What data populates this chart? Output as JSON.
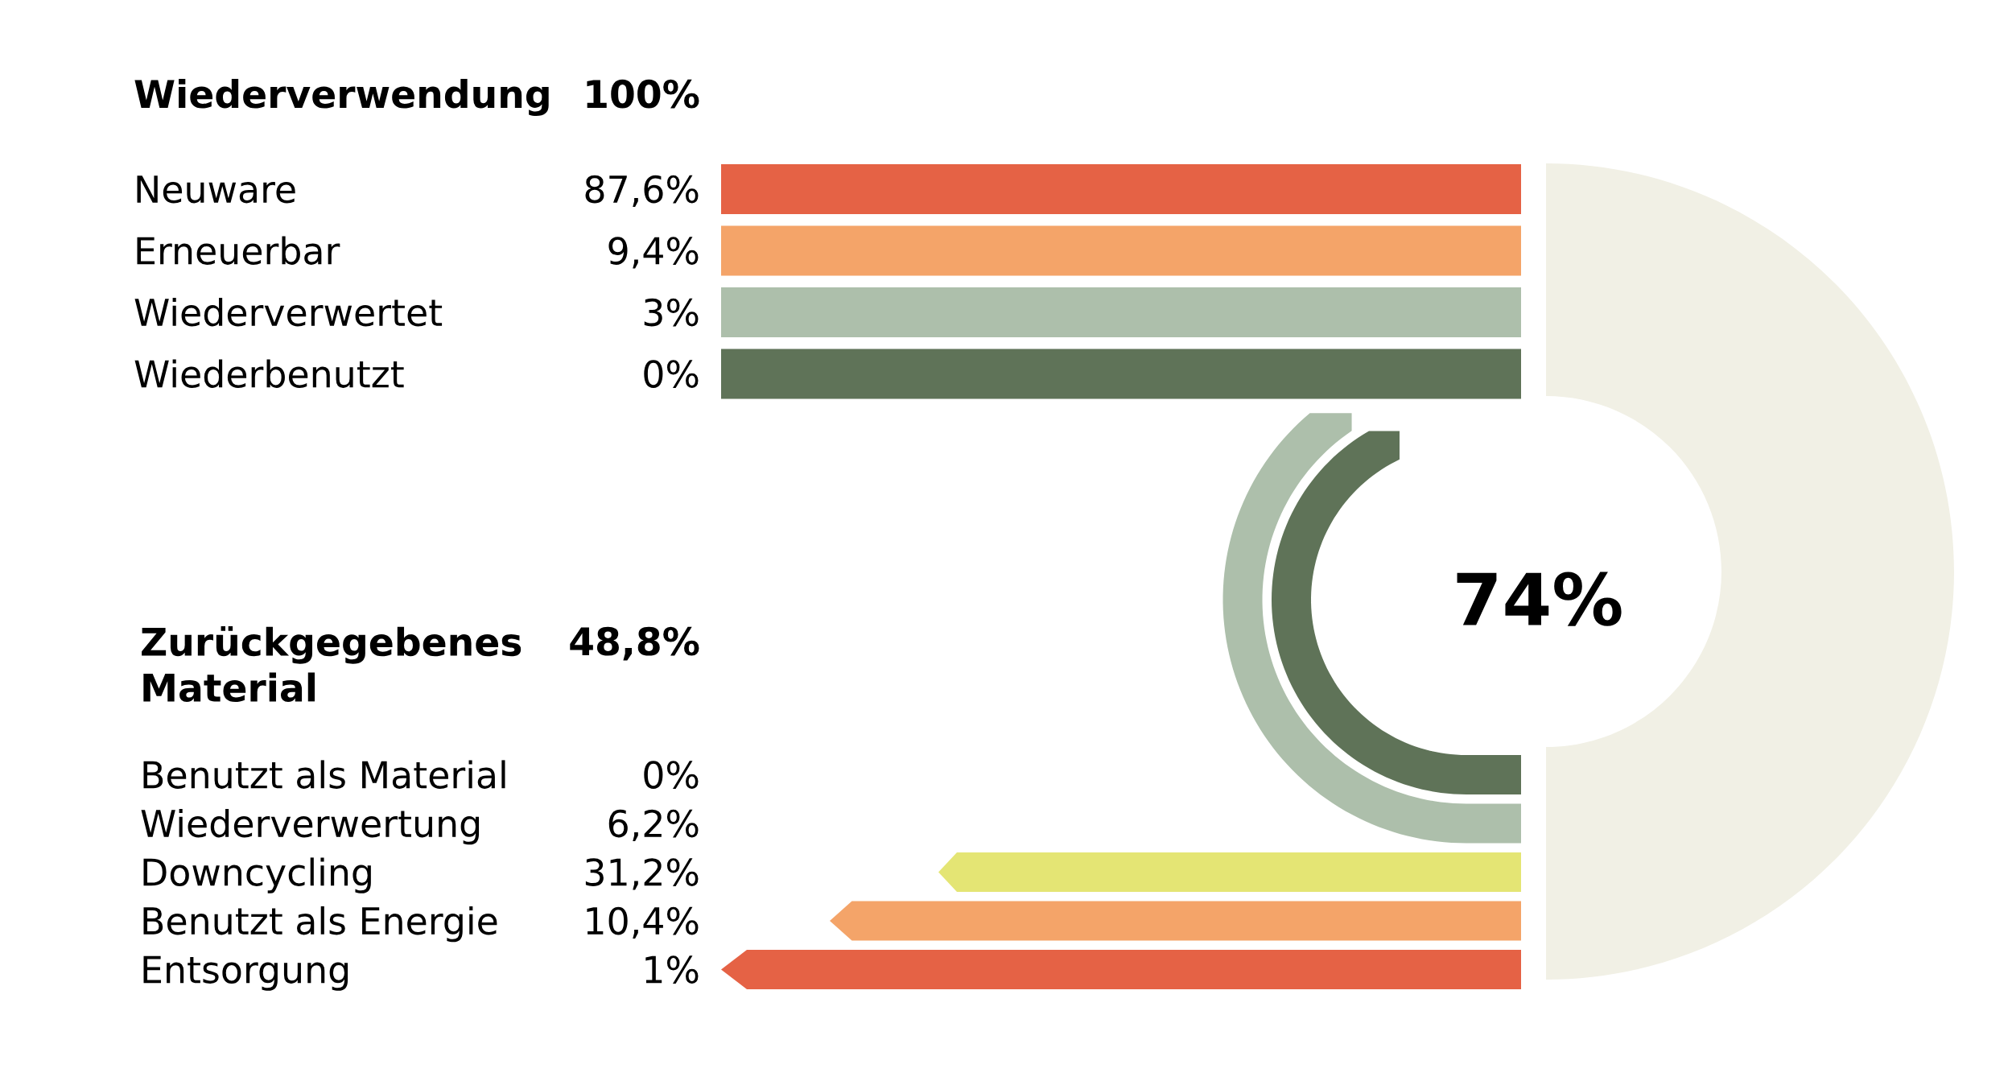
{
  "chart_data": [
    {
      "type": "other",
      "title": "Wiederverwendung",
      "totals": [
        "100%"
      ],
      "categories": [
        "Neuware",
        "Erneuerbar",
        "Wiederverwertet",
        "Wiederbenutzt"
      ],
      "values": [
        87.6,
        9.4,
        3,
        0
      ],
      "value_labels": [
        "87,6%",
        "9,4%",
        "3%",
        "0%"
      ],
      "colors": [
        "#e56245",
        "#f4a469",
        "#adbfab",
        "#5f7358"
      ]
    },
    {
      "type": "other",
      "title": "Zurückgegebenes Material",
      "totals": [
        "48,8%"
      ],
      "categories": [
        "Benutzt als Material",
        "Wiederverwertung",
        "Downcycling",
        "Benutzt als Energie",
        "Entsorgung"
      ],
      "values": [
        0,
        6.2,
        31.2,
        10.4,
        1
      ],
      "value_labels": [
        "0%",
        "6,2%",
        "31,2%",
        "10,4%",
        "1%"
      ],
      "colors": [
        "#5f7358",
        "#adbfab",
        "#e4e574",
        "#f4a469",
        "#e56245"
      ]
    },
    {
      "type": "other",
      "annotations": [
        "74%"
      ]
    }
  ]
}
